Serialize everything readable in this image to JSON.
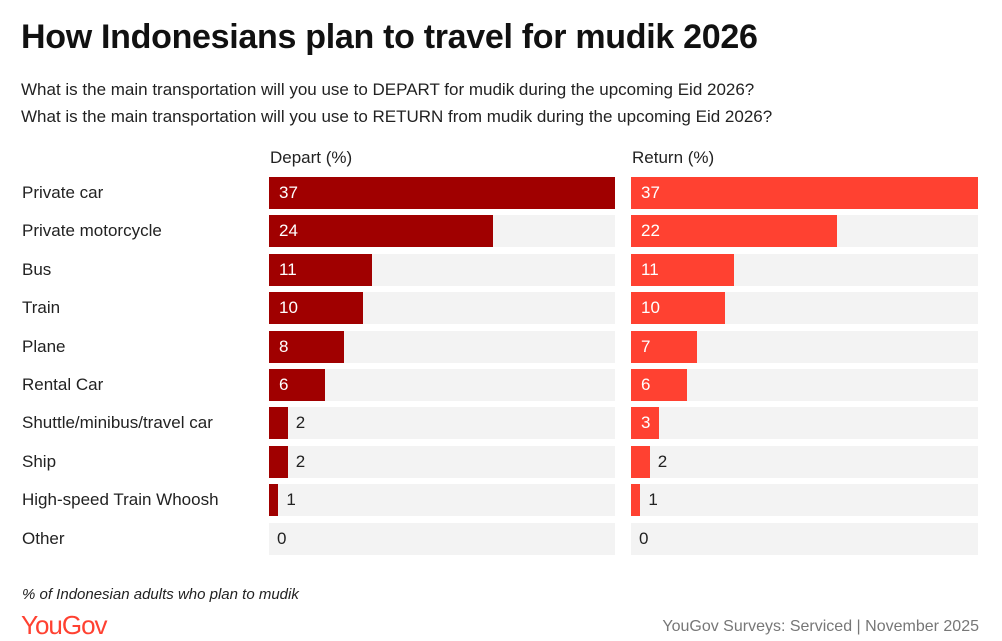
{
  "chart_data": {
    "type": "bar",
    "orientation": "horizontal",
    "title": "How Indonesians plan to travel for mudik 2026",
    "subtitle": [
      "What is the main transportation will you use to DEPART for mudik during the upcoming Eid 2026?",
      "What is the main transportation will you use to RETURN from mudik during the upcoming Eid 2026?"
    ],
    "categories": [
      "Private car",
      "Private motorcycle",
      "Bus",
      "Train",
      "Plane",
      "Rental Car",
      "Shuttle/minibus/travel car",
      "Ship",
      "High-speed Train Whoosh",
      "Other"
    ],
    "series": [
      {
        "name": "Depart (%)",
        "color": "#a00000",
        "values": [
          37,
          24,
          11,
          10,
          8,
          6,
          2,
          2,
          1,
          0
        ]
      },
      {
        "name": "Return (%)",
        "color": "#ff4131",
        "values": [
          37,
          22,
          11,
          10,
          7,
          6,
          3,
          2,
          1,
          0
        ]
      }
    ],
    "xlim": [
      0,
      37
    ],
    "track_color": "#f3f3f3",
    "note": "% of Indonesian adults who plan to mudik",
    "source": "YouGov Surveys: Serviced | November 2025"
  },
  "logo": "YouGov"
}
